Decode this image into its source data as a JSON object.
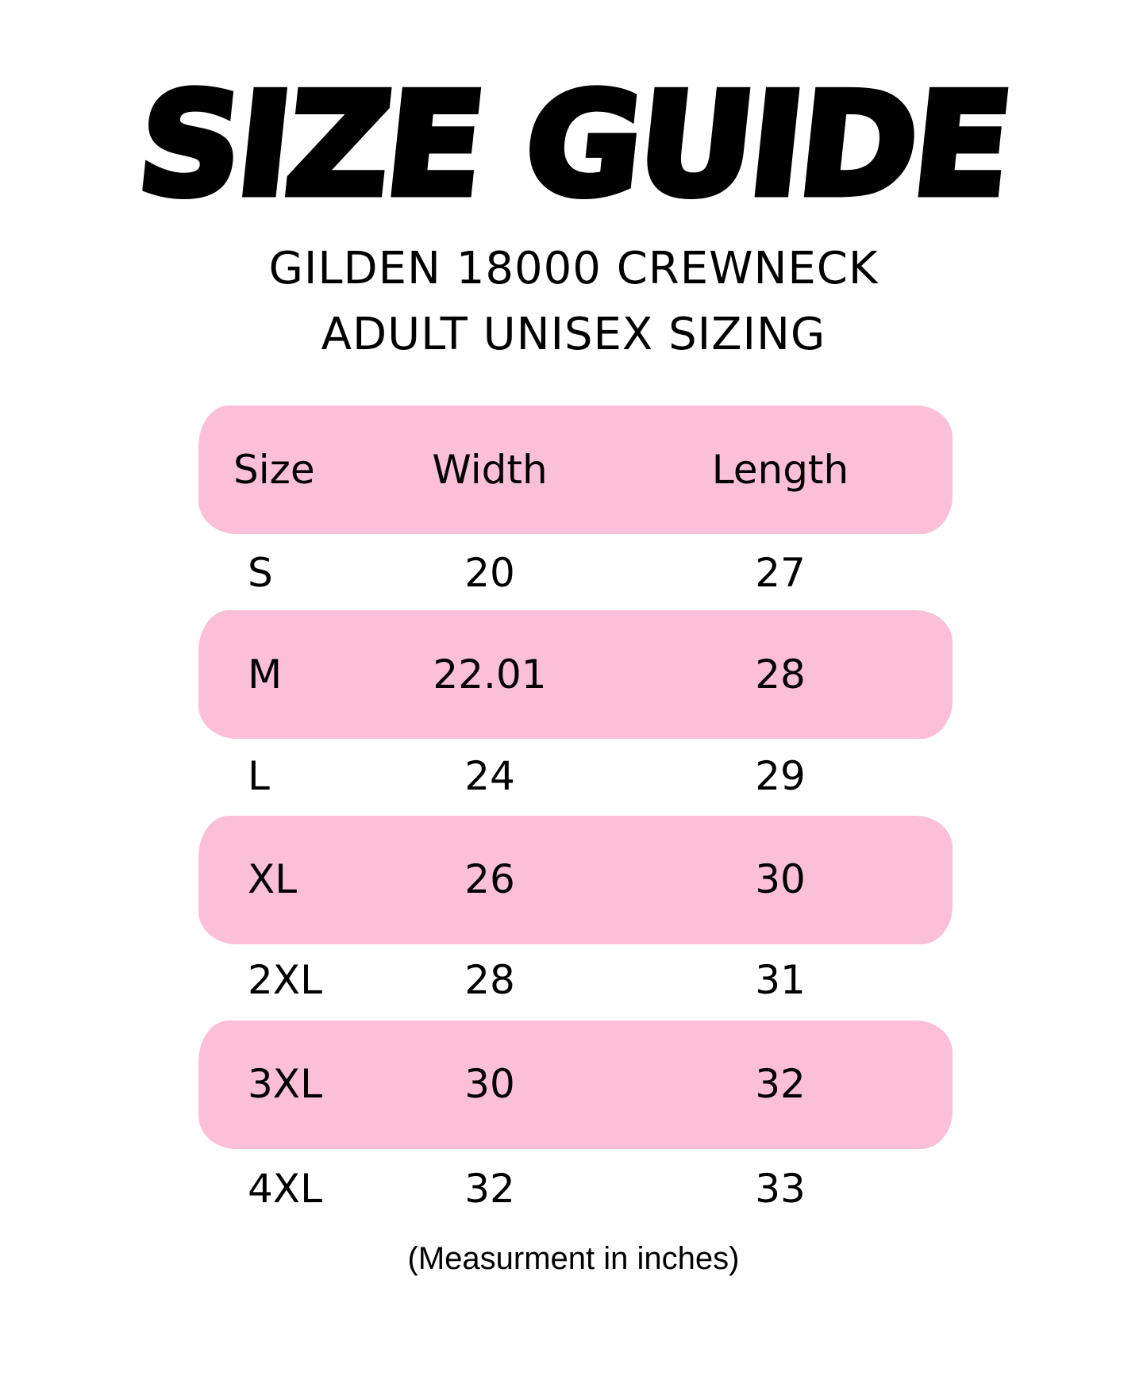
{
  "title": "SIZE GUIDE",
  "subtitle_line1": "GILDEN 18000 CREWNECK",
  "subtitle_line2": "ADULT UNISEX SIZING",
  "accent_color": "#fbc0d8",
  "table": {
    "headers": [
      "Size",
      "Width",
      "Length"
    ],
    "rows": [
      [
        "S",
        "20",
        "27"
      ],
      [
        "M",
        "22.01",
        "28"
      ],
      [
        "L",
        "24",
        "29"
      ],
      [
        "XL",
        "26",
        "30"
      ],
      [
        "2XL",
        "28",
        "31"
      ],
      [
        "3XL",
        "30",
        "32"
      ],
      [
        "4XL",
        "32",
        "33"
      ]
    ]
  },
  "footnote": "(Measurment in inches)"
}
